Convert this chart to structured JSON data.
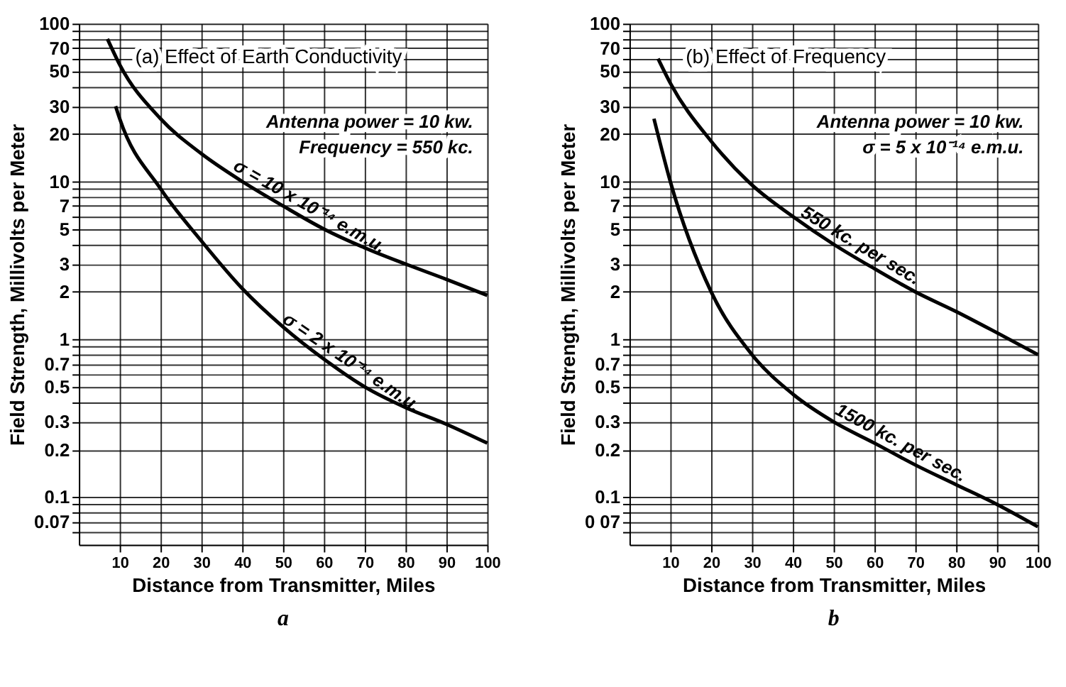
{
  "chart_data": [
    {
      "type": "line",
      "title": "(a) Effect of Earth Conductivity",
      "xlabel": "Distance from Transmitter, Miles",
      "ylabel": "Field Strength, Millivolts per Meter",
      "annotations": [
        "Antenna power = 10 kw.",
        "Frequency = 550 kc.",
        "a"
      ],
      "series": [
        {
          "name": "σ = 10 x 10⁻¹⁴ e.m.u.",
          "color": "#000000",
          "x": [
            7,
            10,
            20,
            30,
            40,
            50,
            60,
            70,
            80,
            90,
            100
          ],
          "values": [
            80,
            55,
            25,
            15,
            10,
            7,
            5,
            3.8,
            3,
            2.4,
            1.9
          ]
        },
        {
          "name": "σ = 2 x 10⁻¹⁴ e.m.u.",
          "color": "#000000",
          "x": [
            9,
            10,
            20,
            30,
            40,
            50,
            60,
            70,
            80,
            90,
            100
          ],
          "values": [
            30,
            25,
            9,
            4.2,
            2.1,
            1.2,
            0.75,
            0.5,
            0.37,
            0.29,
            0.22
          ]
        }
      ],
      "log": "y",
      "xlim": [
        0,
        100
      ],
      "ylim": [
        0.05,
        100
      ],
      "xticks": [
        10,
        20,
        30,
        40,
        50,
        60,
        70,
        80,
        90,
        100
      ],
      "yticks": [
        {
          "value": 0.06,
          "label": null
        },
        0.07,
        {
          "value": 0.08,
          "label": null
        },
        {
          "value": 0.09,
          "label": null
        },
        0.1,
        0.2,
        0.3,
        {
          "value": 0.4,
          "label": null
        },
        0.5,
        {
          "value": 0.6,
          "label": null
        },
        0.7,
        {
          "value": 0.8,
          "label": null
        },
        {
          "value": 0.9,
          "label": null
        },
        1,
        2,
        3,
        {
          "value": 4,
          "label": null
        },
        5,
        {
          "value": 6,
          "label": null
        },
        7,
        {
          "value": 8,
          "label": null
        },
        {
          "value": 9,
          "label": null
        },
        10,
        20,
        30,
        {
          "value": 40,
          "label": null
        },
        50,
        {
          "value": 60,
          "label": null
        },
        70,
        {
          "value": 80,
          "label": null
        },
        {
          "value": 90,
          "label": null
        },
        100
      ],
      "grid": true,
      "legend": false,
      "marker": "none",
      "line_style": "solid"
    },
    {
      "type": "line",
      "title": "(b) Effect of Frequency",
      "xlabel": "Distance from Transmitter, Miles",
      "ylabel": "Field Strength, Millivolts per Meter",
      "annotations": [
        "Antenna power = 10 kw.",
        "σ = 5 x 10⁻¹⁴ e.m.u.",
        "b"
      ],
      "series": [
        {
          "name": "550 kc. per sec.",
          "color": "#000000",
          "x": [
            7,
            10,
            20,
            30,
            40,
            50,
            60,
            70,
            80,
            90,
            100
          ],
          "values": [
            60,
            42,
            18,
            9.5,
            6,
            4,
            2.8,
            2,
            1.5,
            1.1,
            0.8
          ]
        },
        {
          "name": "1500 kc. per sec.",
          "color": "#000000",
          "x": [
            6,
            10,
            20,
            30,
            40,
            50,
            60,
            70,
            80,
            90,
            100
          ],
          "values": [
            25,
            10,
            2,
            0.8,
            0.45,
            0.3,
            0.22,
            0.16,
            0.12,
            0.09,
            0.065
          ]
        }
      ],
      "log": "y",
      "xlim": [
        0,
        100
      ],
      "ylim": [
        0.05,
        100
      ],
      "xticks": [
        10,
        20,
        30,
        40,
        50,
        60,
        70,
        80,
        90,
        100
      ],
      "yticks": [
        {
          "value": 0.06,
          "label": null
        },
        {
          "value": 0.07,
          "label": "0 07"
        },
        {
          "value": 0.08,
          "label": null
        },
        {
          "value": 0.09,
          "label": null
        },
        0.1,
        0.2,
        0.3,
        {
          "value": 0.4,
          "label": null
        },
        0.5,
        {
          "value": 0.6,
          "label": null
        },
        0.7,
        {
          "value": 0.8,
          "label": null
        },
        {
          "value": 0.9,
          "label": null
        },
        1,
        2,
        3,
        {
          "value": 4,
          "label": null
        },
        5,
        {
          "value": 6,
          "label": null
        },
        7,
        {
          "value": 8,
          "label": null
        },
        {
          "value": 9,
          "label": null
        },
        10,
        20,
        30,
        {
          "value": 40,
          "label": null
        },
        50,
        {
          "value": 60,
          "label": null
        },
        70,
        {
          "value": 80,
          "label": null
        },
        {
          "value": 90,
          "label": null
        },
        100
      ],
      "grid": true,
      "legend": false,
      "marker": "none",
      "line_style": "solid"
    }
  ]
}
